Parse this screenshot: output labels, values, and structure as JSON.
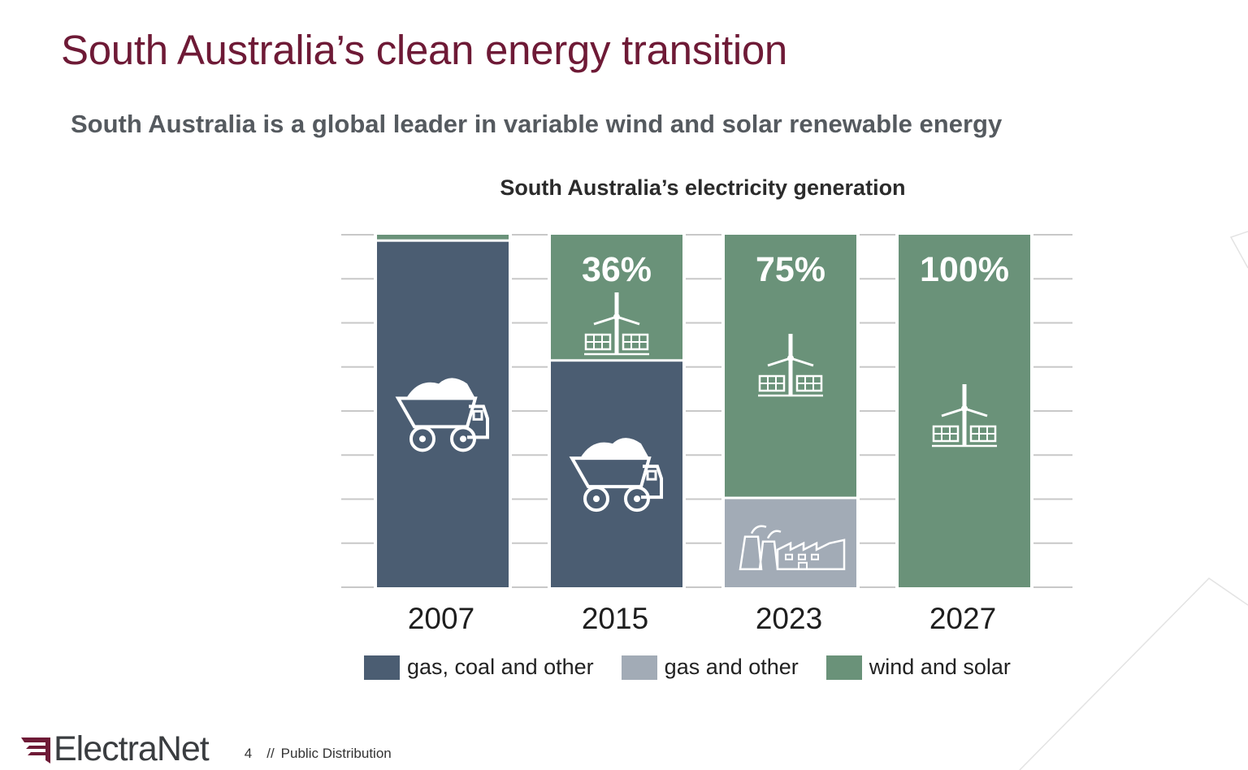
{
  "slide": {
    "title": "South Australia’s clean energy transition",
    "subtitle": "South Australia is a global leader in variable wind and solar renewable energy",
    "page_number": "4",
    "separator": "//",
    "distribution": "Public Distribution",
    "brand": "ElectraNet",
    "brand_color": "#6e1a36"
  },
  "chart_data": {
    "type": "bar",
    "stacked": true,
    "title": "South Australia’s electricity generation",
    "categories": [
      "2007",
      "2015",
      "2023",
      "2027"
    ],
    "series": [
      {
        "name": "gas, coal and other",
        "color": "#4b5d72",
        "values": [
          98,
          64,
          0,
          0
        ],
        "icon": "mining-truck-icon"
      },
      {
        "name": "gas and other",
        "color": "#a2abb6",
        "values": [
          0,
          0,
          25,
          0
        ],
        "icon": "factory-icon"
      },
      {
        "name": "wind and solar",
        "color": "#6a9279",
        "values": [
          2,
          36,
          75,
          100
        ],
        "icon": "wind-solar-icon"
      }
    ],
    "data_labels": [
      "",
      "36%",
      "75%",
      "100%"
    ],
    "ylim": [
      0,
      100
    ],
    "grid": true,
    "legend": "bottom"
  }
}
